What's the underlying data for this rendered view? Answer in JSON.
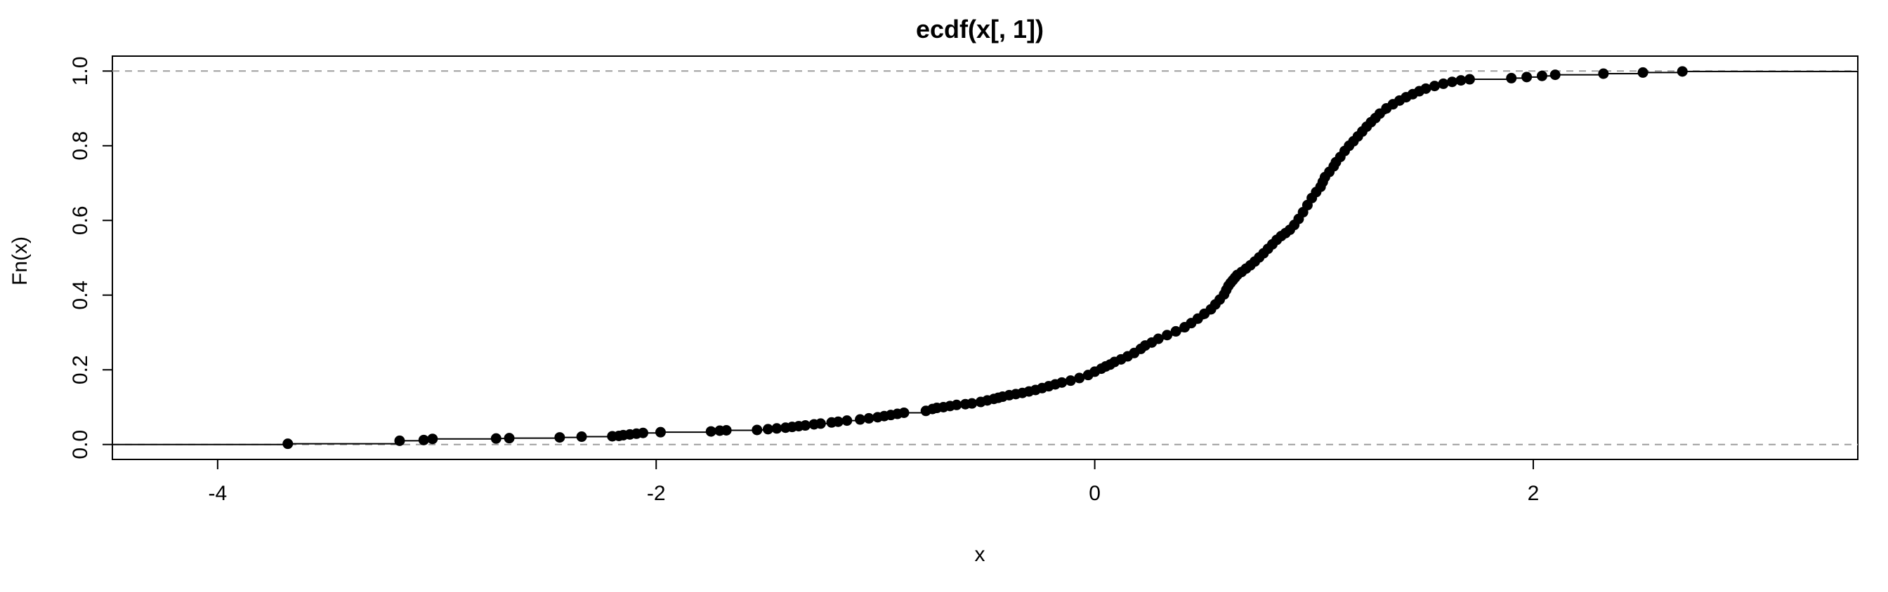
{
  "chart_data": {
    "type": "scatter",
    "title": "ecdf(x[, 1])",
    "xlabel": "x",
    "ylabel": "Fn(x)",
    "xlim": [
      -4.48,
      3.48
    ],
    "ylim": [
      -0.04,
      1.04
    ],
    "xticks": [
      -4,
      -2,
      0,
      2
    ],
    "yticks": [
      0.0,
      0.2,
      0.4,
      0.6,
      0.8,
      1.0
    ],
    "xtick_labels": [
      "-4",
      "-2",
      "0",
      "2"
    ],
    "ytick_labels": [
      "0.0",
      "0.2",
      "0.4",
      "0.6",
      "0.8",
      "1.0"
    ],
    "reference_lines": [
      0,
      1
    ],
    "step_function": true,
    "grid": false,
    "colors": {
      "points": "#000000",
      "reference_line": "#9e9e9e",
      "frame": "#000000"
    },
    "series": [
      {
        "x": [
          -3.68,
          -3.17,
          -3.06,
          -3.02,
          -2.73,
          -2.67,
          -2.44,
          -2.34,
          -2.2,
          -2.17,
          -2.15,
          -2.12,
          -2.09,
          -2.06,
          -1.98,
          -1.75,
          -1.71,
          -1.68,
          -1.54,
          -1.49,
          -1.45,
          -1.41,
          -1.38,
          -1.35,
          -1.32,
          -1.28,
          -1.25,
          -1.2,
          -1.17,
          -1.13,
          -1.07,
          -1.03,
          -0.99,
          -0.96,
          -0.93,
          -0.9,
          -0.87,
          -0.77,
          -0.74,
          -0.72,
          -0.69,
          -0.66,
          -0.63,
          -0.59,
          -0.56,
          -0.52,
          -0.49,
          -0.46,
          -0.44,
          -0.42,
          -0.39,
          -0.36,
          -0.33,
          -0.3,
          -0.27,
          -0.24,
          -0.21,
          -0.18,
          -0.15,
          -0.11,
          -0.07,
          -0.03,
          0.0,
          0.03,
          0.05,
          0.07,
          0.09,
          0.12,
          0.15,
          0.18,
          0.21,
          0.23,
          0.26,
          0.29,
          0.33,
          0.37,
          0.41,
          0.44,
          0.47,
          0.5,
          0.53,
          0.55,
          0.57,
          0.59,
          0.6,
          0.61,
          0.62,
          0.63,
          0.64,
          0.65,
          0.67,
          0.69,
          0.71,
          0.73,
          0.75,
          0.77,
          0.79,
          0.81,
          0.83,
          0.85,
          0.87,
          0.89,
          0.91,
          0.93,
          0.95,
          0.97,
          0.99,
          1.01,
          1.03,
          1.04,
          1.05,
          1.07,
          1.09,
          1.1,
          1.12,
          1.14,
          1.16,
          1.18,
          1.2,
          1.22,
          1.24,
          1.26,
          1.28,
          1.3,
          1.33,
          1.36,
          1.39,
          1.42,
          1.45,
          1.48,
          1.51,
          1.55,
          1.59,
          1.63,
          1.67,
          1.71,
          1.9,
          1.97,
          2.04,
          2.1,
          2.32,
          2.5,
          2.68
        ],
        "y": [
          0.002,
          0.01,
          0.012,
          0.015,
          0.016,
          0.017,
          0.019,
          0.021,
          0.022,
          0.023,
          0.025,
          0.027,
          0.029,
          0.031,
          0.033,
          0.035,
          0.037,
          0.038,
          0.039,
          0.041,
          0.043,
          0.045,
          0.047,
          0.049,
          0.051,
          0.054,
          0.056,
          0.059,
          0.061,
          0.064,
          0.067,
          0.07,
          0.073,
          0.076,
          0.079,
          0.082,
          0.085,
          0.09,
          0.095,
          0.098,
          0.1,
          0.103,
          0.106,
          0.108,
          0.11,
          0.114,
          0.118,
          0.122,
          0.125,
          0.128,
          0.132,
          0.135,
          0.138,
          0.142,
          0.146,
          0.151,
          0.156,
          0.161,
          0.166,
          0.171,
          0.178,
          0.186,
          0.195,
          0.203,
          0.209,
          0.214,
          0.221,
          0.228,
          0.236,
          0.245,
          0.256,
          0.265,
          0.273,
          0.283,
          0.293,
          0.303,
          0.314,
          0.325,
          0.337,
          0.35,
          0.362,
          0.375,
          0.388,
          0.402,
          0.414,
          0.425,
          0.433,
          0.44,
          0.447,
          0.454,
          0.462,
          0.471,
          0.48,
          0.49,
          0.501,
          0.512,
          0.524,
          0.536,
          0.548,
          0.558,
          0.566,
          0.575,
          0.588,
          0.604,
          0.622,
          0.641,
          0.66,
          0.676,
          0.69,
          0.703,
          0.716,
          0.73,
          0.745,
          0.756,
          0.77,
          0.786,
          0.8,
          0.812,
          0.825,
          0.838,
          0.851,
          0.863,
          0.874,
          0.886,
          0.9,
          0.911,
          0.921,
          0.93,
          0.938,
          0.946,
          0.953,
          0.96,
          0.966,
          0.971,
          0.975,
          0.978,
          0.981,
          0.984,
          0.987,
          0.99,
          0.993,
          0.996,
          0.999
        ]
      }
    ]
  }
}
